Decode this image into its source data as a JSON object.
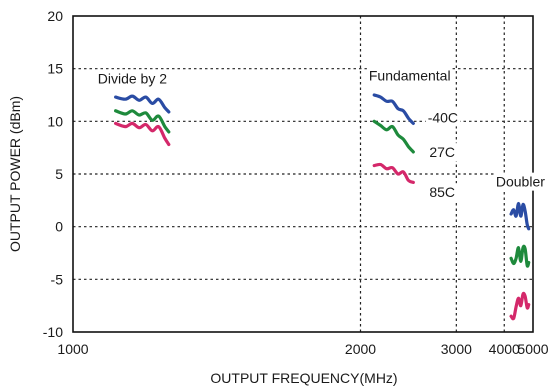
{
  "chart_data": {
    "type": "line",
    "xlabel": "OUTPUT FREQUENCY(MHz)",
    "ylabel": "OUTPUT POWER (dBm)",
    "xlim": [
      1000,
      5000
    ],
    "ylim": [
      -10,
      20
    ],
    "x_scale": "reciprocal",
    "x_ticks": [
      1000,
      2000,
      3000,
      4000,
      5000
    ],
    "x_tick_labels": [
      "1000",
      "2000",
      "3000",
      "4000",
      "5000"
    ],
    "y_ticks": [
      -10,
      -5,
      0,
      5,
      10,
      15,
      20
    ],
    "y_tick_labels": [
      "-10",
      "-5",
      "0",
      "5",
      "10",
      "15",
      "20"
    ],
    "grid": true,
    "colors": {
      "-40C": "#2a4ca4",
      "27C": "#1e8a3c",
      "85C": "#d4286a"
    },
    "annotations": [
      {
        "id": "divide",
        "text": "Divide by 2",
        "x": 1045,
        "y": 13.6
      },
      {
        "id": "fundamental",
        "text": "Fundamental",
        "x": 2060,
        "y": 13.9
      },
      {
        "id": "t-40",
        "text": "-40C",
        "x": 2610,
        "y": 9.9
      },
      {
        "id": "t27",
        "text": "27C",
        "x": 2630,
        "y": 6.6
      },
      {
        "id": "t85",
        "text": "85C",
        "x": 2630,
        "y": 2.8
      },
      {
        "id": "doubler",
        "text": "Doubler",
        "x": 3780,
        "y": 3.8
      }
    ],
    "series": [
      {
        "color": "#2a4ca4",
        "group": "Divide by 2",
        "x": [
          1080,
          1100,
          1115,
          1130,
          1145,
          1160,
          1175,
          1190,
          1200
        ],
        "y": [
          12.3,
          12.1,
          12.4,
          12.0,
          12.3,
          11.7,
          12.1,
          11.3,
          10.9
        ]
      },
      {
        "color": "#1e8a3c",
        "group": "Divide by 2",
        "x": [
          1080,
          1100,
          1115,
          1130,
          1145,
          1160,
          1175,
          1190,
          1200
        ],
        "y": [
          11.0,
          10.7,
          11.0,
          10.6,
          10.8,
          10.1,
          10.5,
          9.5,
          9.0
        ]
      },
      {
        "color": "#d4286a",
        "group": "Divide by 2",
        "x": [
          1080,
          1100,
          1115,
          1130,
          1145,
          1160,
          1175,
          1190,
          1200
        ],
        "y": [
          9.8,
          9.5,
          9.8,
          9.4,
          9.7,
          9.1,
          9.5,
          8.4,
          7.8
        ]
      },
      {
        "color": "#2a4ca4",
        "group": "Fundamental",
        "x": [
          2100,
          2150,
          2200,
          2250,
          2300,
          2350,
          2400,
          2450
        ],
        "y": [
          12.5,
          12.3,
          11.9,
          11.9,
          11.2,
          11.0,
          10.3,
          9.8
        ]
      },
      {
        "color": "#1e8a3c",
        "group": "Fundamental",
        "x": [
          2100,
          2150,
          2200,
          2250,
          2300,
          2350,
          2400,
          2450
        ],
        "y": [
          10.0,
          9.6,
          9.2,
          9.5,
          8.7,
          8.3,
          7.6,
          7.1
        ]
      },
      {
        "color": "#d4286a",
        "group": "Fundamental",
        "x": [
          2100,
          2150,
          2200,
          2250,
          2300,
          2350,
          2400,
          2450
        ],
        "y": [
          5.8,
          5.9,
          5.5,
          5.6,
          5.0,
          5.2,
          4.4,
          4.2
        ]
      },
      {
        "color": "#2a4ca4",
        "group": "Doubler",
        "x": [
          4200,
          4280,
          4360,
          4440,
          4520,
          4600,
          4680,
          4760,
          4820
        ],
        "y": [
          1.2,
          1.6,
          1.0,
          2.2,
          1.0,
          2.1,
          1.5,
          0.2,
          -0.2
        ]
      },
      {
        "color": "#1e8a3c",
        "group": "Doubler",
        "x": [
          4200,
          4280,
          4360,
          4440,
          4520,
          4600,
          4680,
          4760,
          4820
        ],
        "y": [
          -3.0,
          -3.5,
          -3.0,
          -2.0,
          -3.3,
          -2.0,
          -2.1,
          -3.7,
          -3.4
        ]
      },
      {
        "color": "#d4286a",
        "group": "Doubler",
        "x": [
          4200,
          4280,
          4360,
          4440,
          4520,
          4600,
          4680,
          4760,
          4820
        ],
        "y": [
          -8.5,
          -8.7,
          -7.6,
          -6.8,
          -7.5,
          -6.4,
          -6.6,
          -7.7,
          -7.4
        ]
      }
    ]
  }
}
